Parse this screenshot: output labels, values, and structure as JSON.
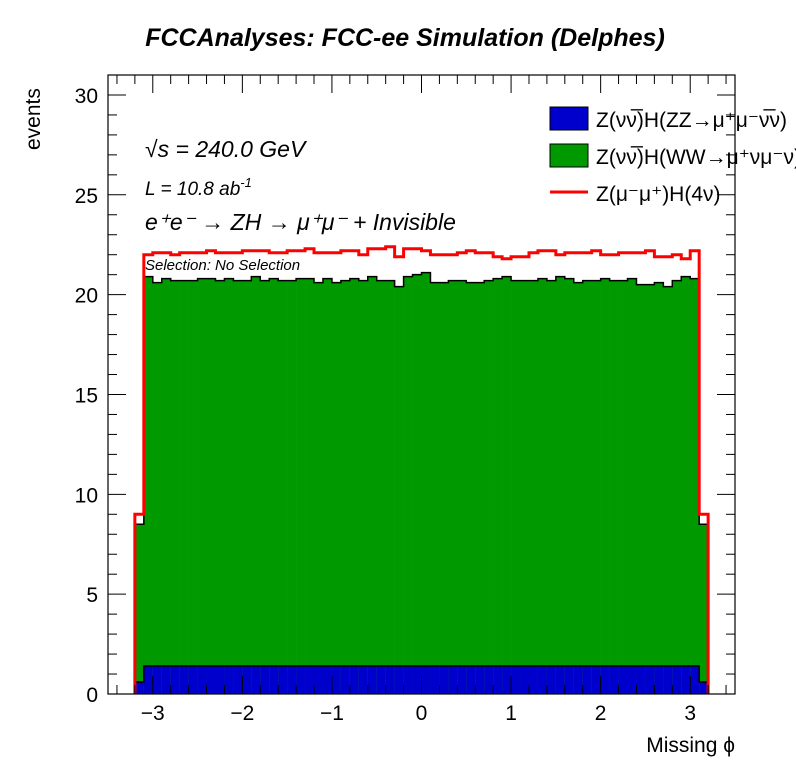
{
  "chart_data": {
    "type": "bar",
    "title": "FCCAnalyses: FCC-ee Simulation (Delphes)",
    "xlabel": "Missing ϕ",
    "ylabel": "events",
    "xlim": [
      -3.5,
      3.5
    ],
    "ylim": [
      0,
      31
    ],
    "bin_edges_start": -3.2,
    "bin_width": 0.1,
    "xticks": [
      "-3",
      "-2",
      "-1",
      "0",
      "1",
      "2",
      "3"
    ],
    "xtick_values": [
      -3,
      -2,
      -1,
      0,
      1,
      2,
      3
    ],
    "yticks": [
      "0",
      "5",
      "10",
      "15",
      "20",
      "25",
      "30"
    ],
    "ytick_values": [
      0,
      5,
      10,
      15,
      20,
      25,
      30
    ],
    "annotations": {
      "sqrt_s": "√s = 240.0 GeV",
      "lumi": "L = 10.8 ab",
      "lumi_exp": "-1",
      "process": "e⁺e⁻ → ZH → μ⁺μ⁻ + Invisible",
      "selection": "Selection: No Selection"
    },
    "legend_position": "top-right",
    "series": [
      {
        "name": "Z(νν̅)H(ZZ→μ⁺μ⁻ν̅ν)",
        "style": "stacked-fill",
        "color": "#0000cc",
        "values": [
          0.6,
          1.4,
          1.4,
          1.4,
          1.4,
          1.4,
          1.4,
          1.4,
          1.4,
          1.4,
          1.4,
          1.4,
          1.4,
          1.4,
          1.4,
          1.4,
          1.4,
          1.4,
          1.4,
          1.4,
          1.4,
          1.4,
          1.4,
          1.4,
          1.4,
          1.4,
          1.4,
          1.4,
          1.4,
          1.4,
          1.4,
          1.4,
          1.4,
          1.4,
          1.4,
          1.4,
          1.4,
          1.4,
          1.4,
          1.4,
          1.4,
          1.4,
          1.4,
          1.4,
          1.4,
          1.4,
          1.4,
          1.4,
          1.4,
          1.4,
          1.4,
          1.4,
          1.4,
          1.4,
          1.4,
          1.4,
          1.4,
          1.4,
          1.4,
          1.4,
          1.4,
          1.4,
          1.4,
          0.6
        ]
      },
      {
        "name": "Z(νν̅)H(WW→μ⁺νμ⁻ν)",
        "style": "stacked-fill",
        "color": "#009900",
        "values": [
          7.9,
          19.5,
          19.2,
          19.4,
          19.3,
          19.3,
          19.3,
          19.4,
          19.4,
          19.3,
          19.4,
          19.3,
          19.3,
          19.5,
          19.3,
          19.4,
          19.3,
          19.3,
          19.4,
          19.4,
          19.2,
          19.4,
          19.2,
          19.3,
          19.4,
          19.3,
          19.5,
          19.3,
          19.3,
          19.0,
          19.5,
          19.6,
          19.7,
          19.2,
          19.2,
          19.3,
          19.3,
          19.2,
          19.2,
          19.3,
          19.4,
          19.5,
          19.3,
          19.3,
          19.3,
          19.4,
          19.3,
          19.5,
          19.4,
          19.2,
          19.3,
          19.3,
          19.4,
          19.3,
          19.3,
          19.4,
          19.1,
          19.1,
          19.2,
          19.0,
          19.3,
          19.5,
          19.4,
          7.9
        ]
      },
      {
        "name": "Z(μ⁻μ⁺)H(4ν)",
        "style": "line",
        "color": "#ff0000",
        "values": [
          9.0,
          22.0,
          22.1,
          22.1,
          22.0,
          22.1,
          22.1,
          22.1,
          22.2,
          22.1,
          22.1,
          22.1,
          22.2,
          22.2,
          22.2,
          22.1,
          22.1,
          22.2,
          22.2,
          22.3,
          22.1,
          22.1,
          22.1,
          22.2,
          22.2,
          22.0,
          22.3,
          22.3,
          22.4,
          21.9,
          22.3,
          22.3,
          22.2,
          22.0,
          22.0,
          22.0,
          22.1,
          22.2,
          22.1,
          22.1,
          21.9,
          21.8,
          21.9,
          21.9,
          22.1,
          22.2,
          22.2,
          22.0,
          22.1,
          22.1,
          22.1,
          22.2,
          22.0,
          22.0,
          22.1,
          22.1,
          22.1,
          22.2,
          21.9,
          21.9,
          22.0,
          21.8,
          22.2,
          9.0
        ]
      }
    ]
  }
}
